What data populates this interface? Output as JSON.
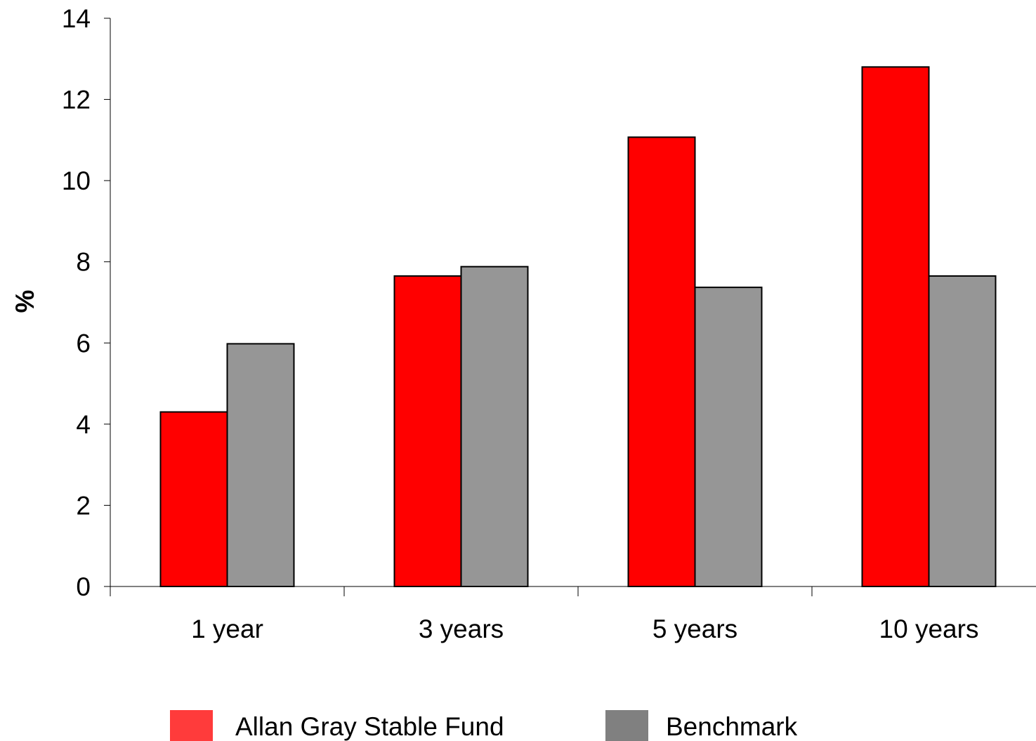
{
  "chart_data": {
    "type": "bar",
    "categories": [
      "1 year",
      "3 years",
      "5 years",
      "10 years"
    ],
    "series": [
      {
        "name": "Allan Gray Stable Fund",
        "values": [
          4.3,
          7.65,
          11.07,
          12.8
        ],
        "color": "#ff0000"
      },
      {
        "name": "Benchmark",
        "values": [
          5.98,
          7.88,
          7.37,
          7.65
        ],
        "color": "#969696"
      }
    ],
    "title": "",
    "xlabel": "",
    "ylabel": "%",
    "ylim": [
      0,
      14
    ],
    "yticks": [
      "0",
      "2",
      "4",
      "6",
      "8",
      "10",
      "12",
      "14"
    ],
    "grid": false,
    "legend_position": "bottom",
    "legend_swatch_colors": [
      "#ff3b3b",
      "#808080"
    ]
  }
}
